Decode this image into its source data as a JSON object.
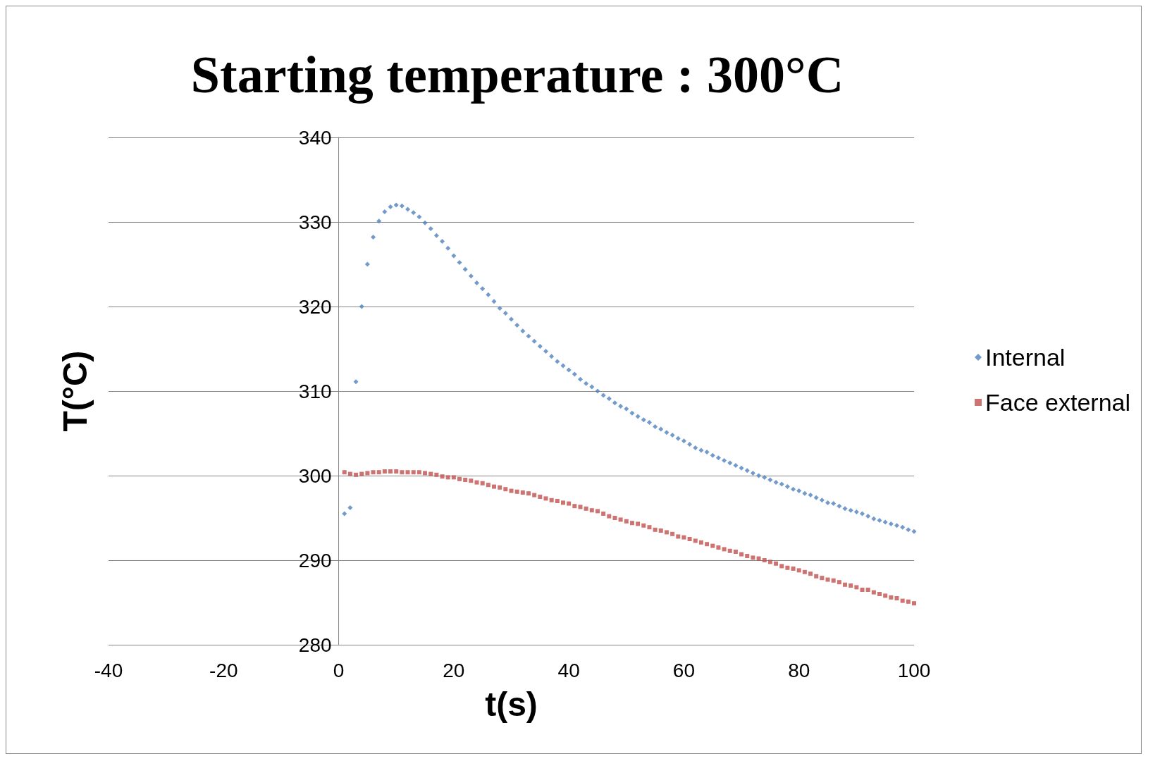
{
  "chart_data": {
    "type": "scatter",
    "title": "Starting temperature : 300°C",
    "xlabel": "t(s)",
    "ylabel": "T(°C)",
    "x": [
      1,
      2,
      3,
      4,
      5,
      6,
      7,
      8,
      9,
      10,
      11,
      12,
      13,
      14,
      15,
      16,
      17,
      18,
      19,
      20,
      21,
      22,
      23,
      24,
      25,
      26,
      27,
      28,
      29,
      30,
      31,
      32,
      33,
      34,
      35,
      36,
      37,
      38,
      39,
      40,
      41,
      42,
      43,
      44,
      45,
      46,
      47,
      48,
      49,
      50,
      51,
      52,
      53,
      54,
      55,
      56,
      57,
      58,
      59,
      60,
      61,
      62,
      63,
      64,
      65,
      66,
      67,
      68,
      69,
      70,
      71,
      72,
      73,
      74,
      75,
      76,
      77,
      78,
      79,
      80,
      81,
      82,
      83,
      84,
      85,
      86,
      87,
      88,
      89,
      90,
      91,
      92,
      93,
      94,
      95,
      96,
      97,
      98,
      99,
      100
    ],
    "series": [
      {
        "name": "Internal",
        "color": "#4f81bd",
        "marker": "diamond",
        "values": [
          295.5,
          296.2,
          311.1,
          320.0,
          325.0,
          328.2,
          330.1,
          331.2,
          331.8,
          332.0,
          331.9,
          331.5,
          331.1,
          330.6,
          329.9,
          329.2,
          328.4,
          327.7,
          326.9,
          326.0,
          325.2,
          324.4,
          323.6,
          322.8,
          322.1,
          321.4,
          320.6,
          319.8,
          319.2,
          318.5,
          317.8,
          317.1,
          316.5,
          315.9,
          315.3,
          314.7,
          314.1,
          313.5,
          313.0,
          312.5,
          312.0,
          311.4,
          310.9,
          310.5,
          310.0,
          309.5,
          309.1,
          308.6,
          308.2,
          307.9,
          307.4,
          307.0,
          306.6,
          306.3,
          305.8,
          305.5,
          305.1,
          304.8,
          304.4,
          304.1,
          303.7,
          303.3,
          303.0,
          302.8,
          302.4,
          302.1,
          301.8,
          301.5,
          301.2,
          300.9,
          300.6,
          300.3,
          300.0,
          299.8,
          299.5,
          299.2,
          299.0,
          298.7,
          298.4,
          298.2,
          297.9,
          297.7,
          297.4,
          297.1,
          296.8,
          296.7,
          296.4,
          296.1,
          295.9,
          295.7,
          295.5,
          295.2,
          294.9,
          294.7,
          294.5,
          294.3,
          294.1,
          293.9,
          293.6,
          293.4
        ]
      },
      {
        "name": "Face external",
        "color": "#c0504d",
        "marker": "square",
        "values": [
          300.4,
          300.2,
          300.1,
          300.2,
          300.3,
          300.4,
          300.4,
          300.5,
          300.5,
          300.5,
          300.4,
          300.4,
          300.4,
          300.4,
          300.3,
          300.2,
          300.1,
          299.9,
          299.8,
          299.8,
          299.6,
          299.5,
          299.4,
          299.2,
          299.1,
          298.9,
          298.7,
          298.6,
          298.4,
          298.2,
          298.1,
          298.0,
          297.9,
          297.7,
          297.5,
          297.3,
          297.1,
          297.0,
          296.8,
          296.7,
          296.4,
          296.3,
          296.1,
          295.9,
          295.8,
          295.5,
          295.2,
          295.0,
          294.8,
          294.6,
          294.4,
          294.3,
          294.1,
          293.9,
          293.6,
          293.5,
          293.3,
          293.1,
          292.8,
          292.7,
          292.5,
          292.3,
          292.1,
          291.9,
          291.7,
          291.5,
          291.3,
          291.1,
          291.0,
          290.7,
          290.5,
          290.3,
          290.2,
          290.0,
          289.8,
          289.6,
          289.3,
          289.1,
          289.0,
          288.8,
          288.6,
          288.4,
          288.1,
          287.9,
          287.7,
          287.6,
          287.4,
          287.1,
          287.0,
          286.8,
          286.5,
          286.5,
          286.2,
          286.0,
          285.8,
          285.6,
          285.5,
          285.2,
          285.1,
          284.9
        ]
      }
    ],
    "xlim": [
      -40,
      100
    ],
    "xticks": [
      -40,
      -20,
      0,
      20,
      40,
      60,
      80,
      100
    ],
    "ylim": [
      280,
      340
    ],
    "yticks": [
      280,
      290,
      300,
      310,
      320,
      330,
      340
    ],
    "grid": "y",
    "legend": "right"
  }
}
